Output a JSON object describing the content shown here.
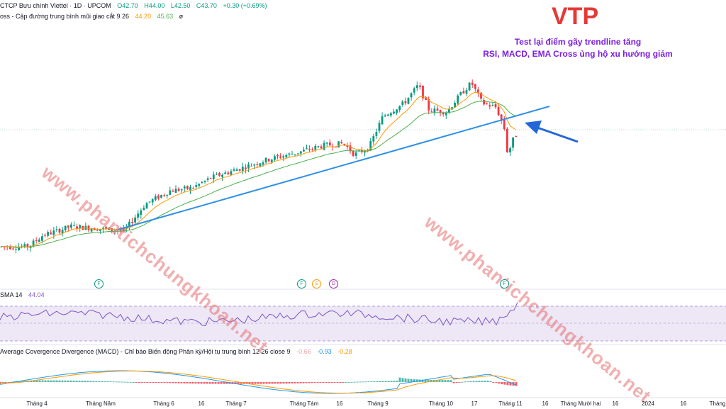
{
  "header": {
    "symbol_line": "CTCP Bưu chính Viettel · 1D · UPCOM",
    "open": "O42.70",
    "high": "H44.00",
    "low": "L42.50",
    "close": "C43.70",
    "change": "+0.30 (+0.69%)",
    "ema_line_label": "oss - Cập đường trung bình mũi giao cắt 9 26",
    "ema_value_1": "44.20",
    "ema_value_2": "45.63",
    "ema_value_3": "ø"
  },
  "annotation": {
    "ticker": "VTP",
    "line1": "Test lại điểm gãy trendline tăng",
    "line2": "RSI, MACD, EMA Cross ủng hộ xu hướng giảm"
  },
  "watermark": "www.phantichchungkhoan.net",
  "events": [
    {
      "label": "F",
      "color": "#089981"
    },
    {
      "label": "F",
      "color": "#089981"
    },
    {
      "label": "S",
      "color": "#ff9800"
    },
    {
      "label": "D",
      "color": "#9c27b0"
    },
    {
      "label": "F",
      "color": "#089981"
    }
  ],
  "rsi": {
    "label": "SMA 14",
    "value": "44.04"
  },
  "macd": {
    "label": "Average Covergence Divergence (MACD) - Chỉ báo Biến động Phân kỳ/Hội tụ trung bình 12 26 close 9",
    "hist_value": "-0.66",
    "macd_value": "-0.93",
    "signal_value": "-0.28"
  },
  "x_axis": {
    "labels": [
      "Tháng 4",
      "Tháng Năm",
      "Tháng 6",
      "16",
      "Tháng 7",
      "Tháng Tám",
      "16",
      "Tháng 9",
      "Tháng 10",
      "17",
      "Tháng 11",
      "16",
      "Tháng Mười hai",
      "16",
      "2024",
      "16",
      "Tháng"
    ]
  },
  "colors": {
    "up": "#089981",
    "down": "#f23645",
    "trendline": "#2f8fe6",
    "arrow": "#2468d8",
    "ema_fast": "#ff9800",
    "ema_slow": "#4caf50",
    "rsi_line": "#7e57c2",
    "macd_line": "#2196f3",
    "signal_line": "#ff9800"
  },
  "chart_data": {
    "type": "candlestick",
    "price_path": [
      [
        0,
        44.0
      ],
      [
        40,
        44.0
      ],
      [
        60,
        46.5
      ],
      [
        100,
        48.5
      ],
      [
        140,
        48.0
      ],
      [
        175,
        47.5
      ],
      [
        205,
        53.5
      ],
      [
        240,
        56.5
      ],
      [
        270,
        57.0
      ],
      [
        300,
        59.5
      ],
      [
        340,
        61.5
      ],
      [
        380,
        63.5
      ],
      [
        420,
        65.0
      ],
      [
        455,
        66.5
      ],
      [
        485,
        67.0
      ],
      [
        500,
        64.5
      ],
      [
        520,
        66.0
      ],
      [
        540,
        73.0
      ],
      [
        570,
        76.0
      ],
      [
        590,
        80.0
      ],
      [
        605,
        74.5
      ],
      [
        630,
        74.0
      ],
      [
        650,
        78.0
      ],
      [
        665,
        80.5
      ],
      [
        680,
        76.0
      ],
      [
        700,
        75.0
      ],
      [
        712,
        70.0
      ],
      [
        716,
        64.5
      ],
      [
        724,
        68.0
      ],
      [
        730,
        69.5
      ]
    ]
  }
}
